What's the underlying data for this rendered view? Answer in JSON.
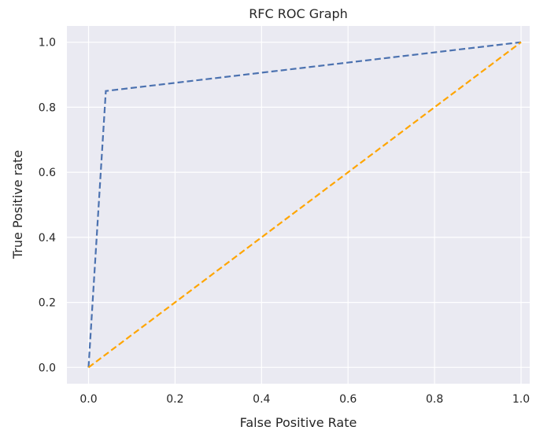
{
  "chart_data": {
    "type": "line",
    "title": "RFC ROC Graph",
    "xlabel": "False Positive Rate",
    "ylabel": "True Positive rate",
    "xlim": [
      -0.05,
      1.02
    ],
    "ylim": [
      -0.05,
      1.05
    ],
    "xticks": [
      "0.0",
      "0.2",
      "0.4",
      "0.6",
      "0.8",
      "1.0"
    ],
    "yticks": [
      "0.0",
      "0.2",
      "0.4",
      "0.6",
      "0.8",
      "1.0"
    ],
    "grid": true,
    "series": [
      {
        "color": "#4c72b0",
        "dash": "dashed",
        "x": [
          0.0,
          0.04,
          1.0
        ],
        "y": [
          0.0,
          0.85,
          1.0
        ]
      },
      {
        "color": "#ffa500",
        "dash": "dashed",
        "x": [
          0.0,
          1.0
        ],
        "y": [
          0.0,
          1.0
        ]
      }
    ],
    "background": "#eaeaf2"
  }
}
